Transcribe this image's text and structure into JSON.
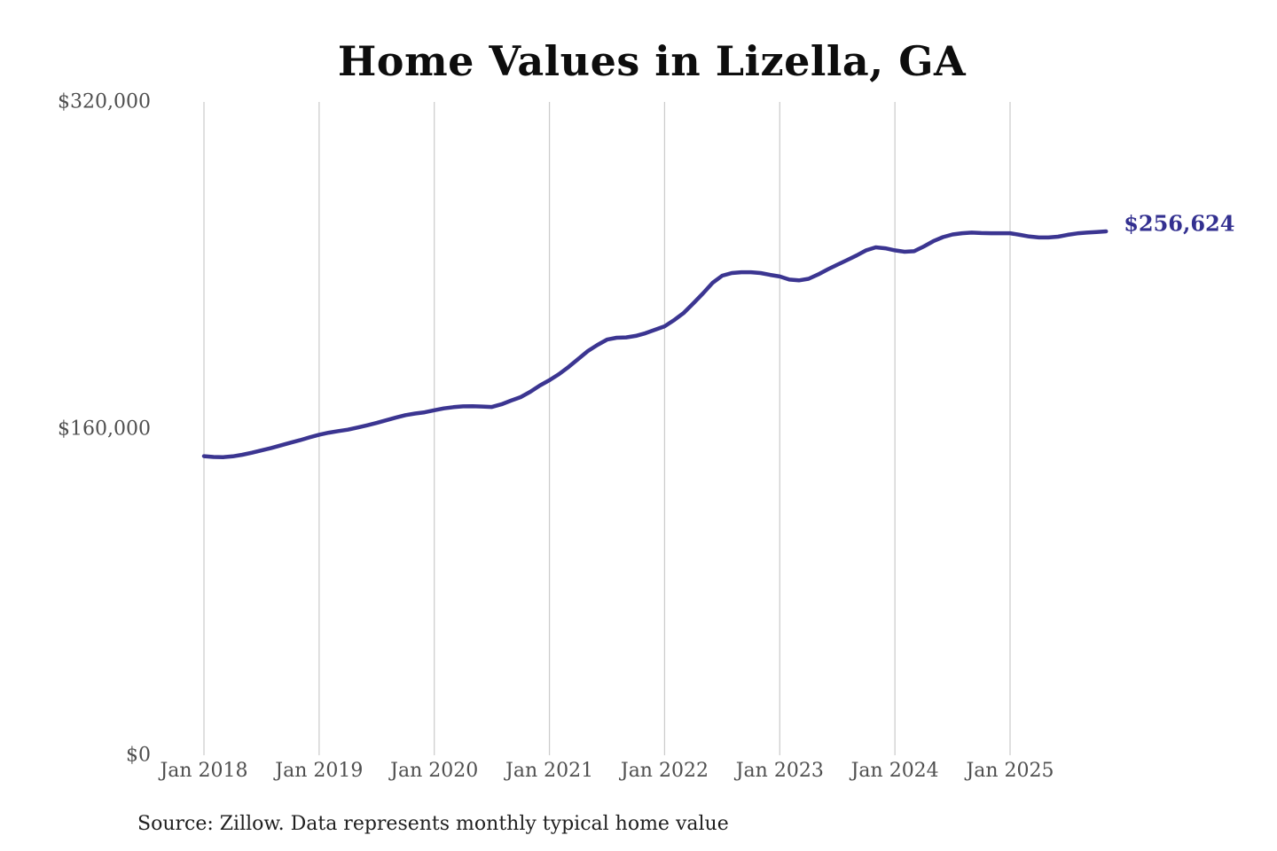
{
  "title": "Home Values in Lizella, GA",
  "source_note": "Source: Zillow. Data represents monthly typical home value",
  "colors": {
    "line": "#3b3591",
    "end_label": "#333090",
    "gridline": "#cccccc",
    "axis_label": "#4f4f4f",
    "title": "#0d0d0d",
    "source": "#1f1f1f",
    "background": "#ffffff"
  },
  "chart_data": {
    "type": "line",
    "title": "Home Values in Lizella, GA",
    "unit": "USD",
    "frequency": "monthly",
    "x_start_month": "Jan 2018",
    "x_end_month": "Nov 2025",
    "x_tick_labels": [
      "Jan 2018",
      "Jan 2019",
      "Jan 2020",
      "Jan 2021",
      "Jan 2022",
      "Jan 2023",
      "Jan 2024",
      "Jan 2025"
    ],
    "y_ticks": [
      {
        "label": "$0",
        "value": 0
      },
      {
        "label": "$160,000",
        "value": 160000
      },
      {
        "label": "$320,000",
        "value": 320000
      }
    ],
    "ylim": [
      0,
      320000
    ],
    "grid": "vertical",
    "legend": "none",
    "series": [
      {
        "name": "Typical home value",
        "values": [
          146500,
          146100,
          146000,
          146400,
          147200,
          148200,
          149300,
          150500,
          151800,
          153100,
          154300,
          155700,
          157000,
          158000,
          158800,
          159500,
          160500,
          161600,
          162800,
          164100,
          165400,
          166600,
          167400,
          168000,
          169000,
          169900,
          170500,
          170900,
          171000,
          170800,
          170600,
          171900,
          173700,
          175400,
          178000,
          181100,
          183700,
          186700,
          190200,
          194100,
          198000,
          201000,
          203600,
          204500,
          204700,
          205400,
          206700,
          208400,
          210100,
          213200,
          216700,
          221400,
          226200,
          231400,
          234900,
          236200,
          236600,
          236600,
          236200,
          235300,
          234500,
          233000,
          232600,
          233400,
          235500,
          238000,
          240300,
          242500,
          244800,
          247300,
          248800,
          248300,
          247300,
          246600,
          246900,
          249200,
          251800,
          253800,
          255100,
          255700,
          256000,
          255800,
          255700,
          255700,
          255700,
          254900,
          254100,
          253600,
          253600,
          254000,
          254900,
          255600,
          256000,
          256300,
          256624
        ]
      }
    ],
    "end_value": 256624,
    "end_value_label": "$256,624"
  }
}
